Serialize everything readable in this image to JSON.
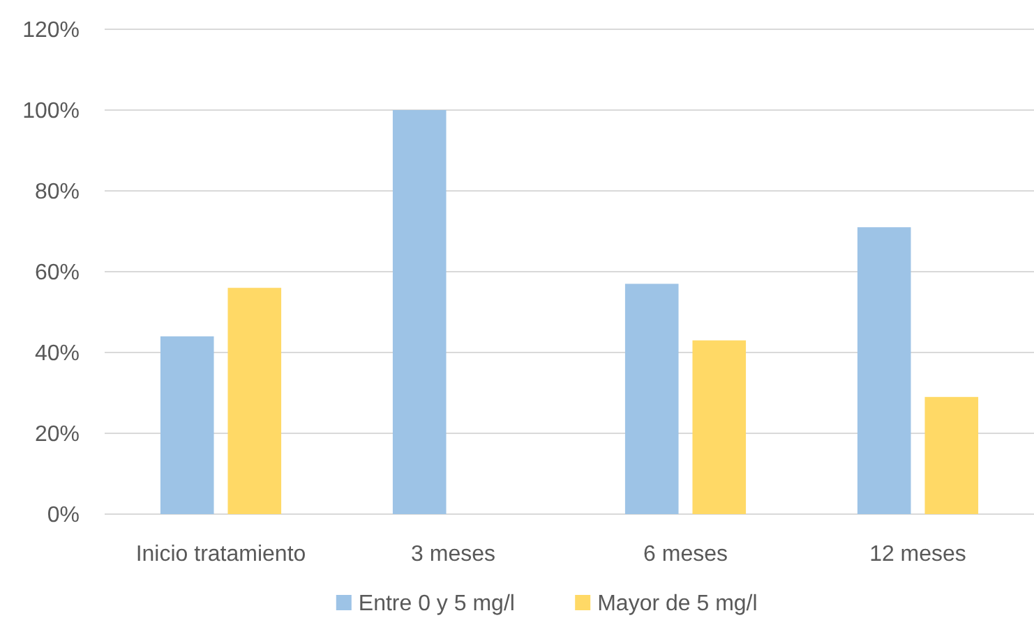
{
  "chart_data": {
    "type": "bar",
    "categories": [
      "Inicio tratamiento",
      "3 meses",
      "6 meses",
      "12 meses"
    ],
    "series": [
      {
        "name": "Entre 0 y 5 mg/l",
        "color": "#9dc3e6",
        "values": [
          44,
          100,
          57,
          71
        ]
      },
      {
        "name": "Mayor de 5 mg/l",
        "color": "#ffd966",
        "values": [
          56,
          0,
          43,
          29
        ]
      }
    ],
    "ylim": [
      0,
      120
    ],
    "yticks": [
      {
        "value": 0,
        "label": "0%"
      },
      {
        "value": 20,
        "label": "20%"
      },
      {
        "value": 40,
        "label": "40%"
      },
      {
        "value": 60,
        "label": "60%"
      },
      {
        "value": 80,
        "label": "80%"
      },
      {
        "value": 100,
        "label": "100%"
      },
      {
        "value": 120,
        "label": "120%"
      }
    ],
    "grid": "y",
    "legend": "bottom"
  }
}
